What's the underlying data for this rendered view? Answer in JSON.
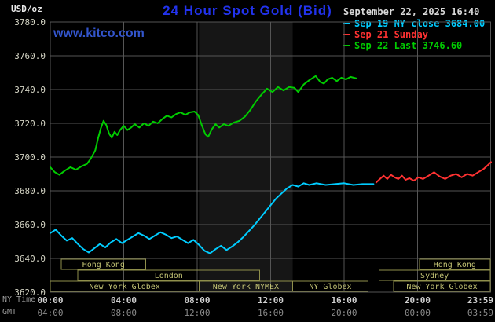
{
  "header": {
    "units_label": "USD/oz",
    "title": "24 Hour Spot Gold (Bid)",
    "datetime": "September 22, 2025 16:40",
    "watermark": "www.kitco.com"
  },
  "legend": {
    "items": [
      {
        "label": "Sep 19 NY close 3684.00",
        "color": "#00ccff"
      },
      {
        "label": "Sep 21 Sunday",
        "color": "#ff3232"
      },
      {
        "label": "Sep 22 Last 3746.60",
        "color": "#00cc00"
      }
    ]
  },
  "axis_notes": {
    "ny": "NY Time",
    "gmt": "GMT"
  },
  "colors": {
    "background": "#000000",
    "band": "#161616",
    "grid": "#555555",
    "axis_text": "#d4d4c4",
    "tick_ny": "#d0d0d0",
    "tick_gmt": "#8a8a8a",
    "session_border": "#8f8f4b",
    "session_text": "#c2c274",
    "title": "#2233ee",
    "kitco": "#3355cc"
  },
  "chart_data": {
    "type": "line",
    "title": "24 Hour Spot Gold (Bid)",
    "ylabel": "USD/oz",
    "ylim": [
      3620,
      3780
    ],
    "y_tick_step": 20,
    "x_ticks": [
      {
        "hour": 0,
        "ny": "00:00",
        "gmt": "04:00"
      },
      {
        "hour": 4,
        "ny": "04:00",
        "gmt": "08:00"
      },
      {
        "hour": 8,
        "ny": "08:00",
        "gmt": "12:00"
      },
      {
        "hour": 12,
        "ny": "12:00",
        "gmt": "16:00"
      },
      {
        "hour": 16,
        "ny": "16:00",
        "gmt": "20:00"
      },
      {
        "hour": 20,
        "ny": "20:00",
        "gmt": "00:00"
      },
      {
        "hour": 23.98,
        "ny": "23:59",
        "gmt": "03:59"
      }
    ],
    "band": {
      "start": 8.1,
      "end": 13.2
    },
    "series": [
      {
        "id": "sep19",
        "name": "Sep 19 NY close",
        "close": 3684.0,
        "color": "#00ccff",
        "points": [
          [
            0,
            3655
          ],
          [
            0.3,
            3657
          ],
          [
            0.6,
            3653.5
          ],
          [
            0.9,
            3650.5
          ],
          [
            1.2,
            3652
          ],
          [
            1.5,
            3648.5
          ],
          [
            1.8,
            3645.5
          ],
          [
            2.1,
            3643.5
          ],
          [
            2.4,
            3646
          ],
          [
            2.7,
            3648.5
          ],
          [
            3.0,
            3646.5
          ],
          [
            3.3,
            3649.5
          ],
          [
            3.6,
            3651.5
          ],
          [
            3.9,
            3649
          ],
          [
            4.2,
            3651
          ],
          [
            4.5,
            3653
          ],
          [
            4.8,
            3655
          ],
          [
            5.1,
            3653.5
          ],
          [
            5.4,
            3651.5
          ],
          [
            5.7,
            3653.5
          ],
          [
            6.0,
            3655.5
          ],
          [
            6.3,
            3654
          ],
          [
            6.6,
            3652
          ],
          [
            6.9,
            3653
          ],
          [
            7.2,
            3651
          ],
          [
            7.5,
            3649
          ],
          [
            7.8,
            3651
          ],
          [
            8.1,
            3648
          ],
          [
            8.4,
            3644.5
          ],
          [
            8.7,
            3643
          ],
          [
            9.0,
            3645.5
          ],
          [
            9.3,
            3647.5
          ],
          [
            9.6,
            3645
          ],
          [
            9.9,
            3647
          ],
          [
            10.2,
            3649.5
          ],
          [
            10.5,
            3652.5
          ],
          [
            10.8,
            3656
          ],
          [
            11.1,
            3659.5
          ],
          [
            11.4,
            3663.5
          ],
          [
            11.7,
            3667.5
          ],
          [
            12.0,
            3671.5
          ],
          [
            12.3,
            3675.5
          ],
          [
            12.6,
            3678.5
          ],
          [
            12.9,
            3681.5
          ],
          [
            13.2,
            3683.5
          ],
          [
            13.5,
            3682.5
          ],
          [
            13.8,
            3684.5
          ],
          [
            14.1,
            3683.5
          ],
          [
            14.5,
            3684.5
          ],
          [
            15.0,
            3683.5
          ],
          [
            15.5,
            3684
          ],
          [
            16.0,
            3684.5
          ],
          [
            16.5,
            3683.5
          ],
          [
            17.0,
            3684
          ],
          [
            17.6,
            3684
          ]
        ]
      },
      {
        "id": "sep21",
        "name": "Sep 21 Sunday",
        "color": "#ff3232",
        "points": [
          [
            17.75,
            3685
          ],
          [
            17.95,
            3687
          ],
          [
            18.15,
            3689
          ],
          [
            18.35,
            3687
          ],
          [
            18.55,
            3689.5
          ],
          [
            18.75,
            3688
          ],
          [
            18.95,
            3687
          ],
          [
            19.15,
            3689
          ],
          [
            19.35,
            3686.5
          ],
          [
            19.55,
            3687.5
          ],
          [
            19.8,
            3686
          ],
          [
            20.05,
            3688
          ],
          [
            20.3,
            3687
          ],
          [
            20.6,
            3689
          ],
          [
            20.9,
            3691
          ],
          [
            21.2,
            3688.5
          ],
          [
            21.5,
            3687
          ],
          [
            21.8,
            3689
          ],
          [
            22.1,
            3690
          ],
          [
            22.4,
            3688
          ],
          [
            22.7,
            3690
          ],
          [
            23.0,
            3689
          ],
          [
            23.3,
            3691
          ],
          [
            23.6,
            3693
          ],
          [
            23.85,
            3695.5
          ],
          [
            24,
            3697
          ]
        ]
      },
      {
        "id": "sep22",
        "name": "Sep 22 Last",
        "last": 3746.6,
        "color": "#00cc00",
        "points": [
          [
            0,
            3694
          ],
          [
            0.25,
            3691
          ],
          [
            0.5,
            3689.5
          ],
          [
            0.8,
            3692
          ],
          [
            1.1,
            3694
          ],
          [
            1.4,
            3692.5
          ],
          [
            1.7,
            3694.5
          ],
          [
            2.0,
            3696
          ],
          [
            2.2,
            3699
          ],
          [
            2.45,
            3704
          ],
          [
            2.6,
            3711
          ],
          [
            2.75,
            3717
          ],
          [
            2.9,
            3721.5
          ],
          [
            3.05,
            3719
          ],
          [
            3.2,
            3714
          ],
          [
            3.35,
            3711.5
          ],
          [
            3.5,
            3715
          ],
          [
            3.65,
            3713
          ],
          [
            3.8,
            3716
          ],
          [
            4.0,
            3718.5
          ],
          [
            4.2,
            3716
          ],
          [
            4.4,
            3717.5
          ],
          [
            4.6,
            3719.5
          ],
          [
            4.85,
            3717.5
          ],
          [
            5.1,
            3720
          ],
          [
            5.35,
            3718.5
          ],
          [
            5.6,
            3721
          ],
          [
            5.85,
            3720
          ],
          [
            6.1,
            3722.5
          ],
          [
            6.35,
            3724.5
          ],
          [
            6.6,
            3723.5
          ],
          [
            6.85,
            3725.5
          ],
          [
            7.1,
            3726.5
          ],
          [
            7.35,
            3725
          ],
          [
            7.6,
            3726.5
          ],
          [
            7.85,
            3727
          ],
          [
            8.05,
            3725
          ],
          [
            8.25,
            3719
          ],
          [
            8.45,
            3713.5
          ],
          [
            8.6,
            3712
          ],
          [
            8.8,
            3716.5
          ],
          [
            9.0,
            3719.5
          ],
          [
            9.2,
            3717.5
          ],
          [
            9.45,
            3719.5
          ],
          [
            9.7,
            3718.5
          ],
          [
            10.0,
            3720.5
          ],
          [
            10.3,
            3721.5
          ],
          [
            10.6,
            3724
          ],
          [
            10.9,
            3728
          ],
          [
            11.2,
            3733
          ],
          [
            11.5,
            3737
          ],
          [
            11.8,
            3740.5
          ],
          [
            12.1,
            3738.5
          ],
          [
            12.4,
            3741.5
          ],
          [
            12.7,
            3739.5
          ],
          [
            13.0,
            3741.5
          ],
          [
            13.3,
            3741
          ],
          [
            13.5,
            3738.5
          ],
          [
            13.8,
            3743
          ],
          [
            14.1,
            3745.5
          ],
          [
            14.45,
            3748
          ],
          [
            14.7,
            3744.5
          ],
          [
            14.9,
            3743.5
          ],
          [
            15.1,
            3746
          ],
          [
            15.35,
            3747
          ],
          [
            15.6,
            3745
          ],
          [
            15.85,
            3747
          ],
          [
            16.1,
            3746
          ],
          [
            16.35,
            3747.5
          ],
          [
            16.67,
            3746.6
          ]
        ]
      }
    ],
    "sessions": [
      {
        "row": 0,
        "label": "Hong Kong",
        "start": 0.6,
        "end": 5.2
      },
      {
        "row": 0,
        "label": "Hong Kong",
        "start": 20.1,
        "end": 23.95
      },
      {
        "row": 1,
        "label": "London",
        "start": 1.5,
        "end": 11.4
      },
      {
        "row": 1,
        "label": "Sydney",
        "start": 17.9,
        "end": 23.95
      },
      {
        "row": 2,
        "label": "New York Globex",
        "start": 0.0,
        "end": 8.1
      },
      {
        "row": 2,
        "label": "New York NYMEX",
        "start": 8.1,
        "end": 13.2
      },
      {
        "row": 2,
        "label": "NY Globex",
        "start": 13.2,
        "end": 17.3
      },
      {
        "row": 2,
        "label": "New York Globex",
        "start": 18.7,
        "end": 23.95
      }
    ]
  }
}
